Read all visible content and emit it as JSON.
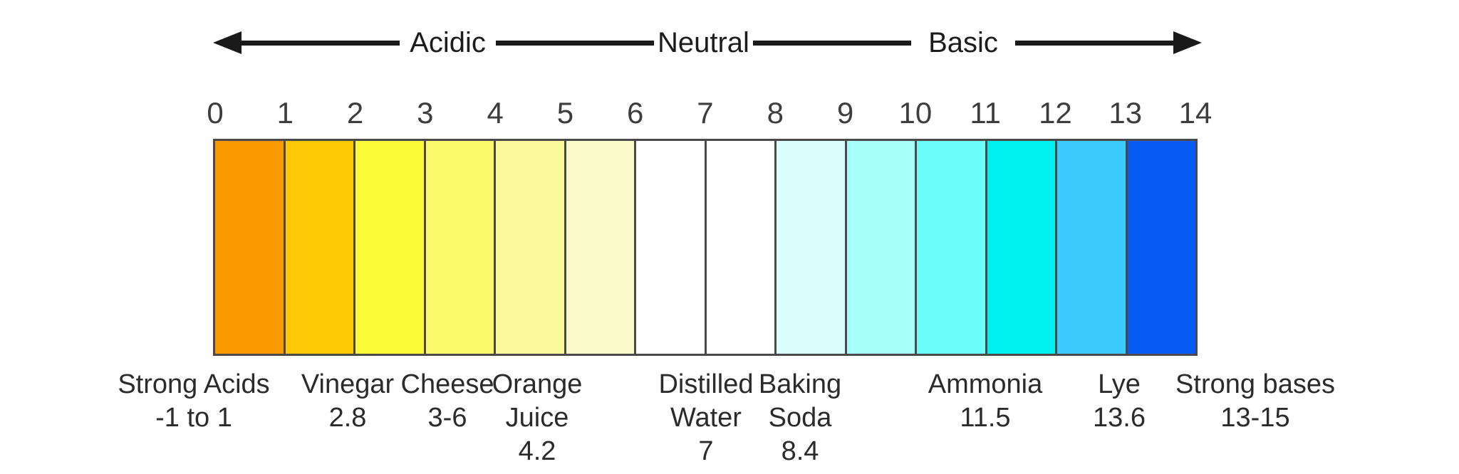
{
  "diagram": {
    "type": "ph-scale",
    "background": "#FFFFFF",
    "text_color": "#2B2B2B",
    "arrow_color": "#1A1A1A"
  },
  "arrow": {
    "acidic_label": "Acidic",
    "neutral_label": "Neutral",
    "basic_label": "Basic"
  },
  "scale": {
    "ticks": [
      "0",
      "1",
      "2",
      "3",
      "4",
      "5",
      "6",
      "7",
      "8",
      "9",
      "10",
      "11",
      "12",
      "13",
      "14"
    ],
    "border_color": "#4A4A4A",
    "cells": [
      {
        "ph_from": 0,
        "ph_to": 1,
        "color": "#FB9902"
      },
      {
        "ph_from": 1,
        "ph_to": 2,
        "color": "#FDC804"
      },
      {
        "ph_from": 2,
        "ph_to": 3,
        "color": "#FAFA38"
      },
      {
        "ph_from": 3,
        "ph_to": 4,
        "color": "#FAFA6A"
      },
      {
        "ph_from": 4,
        "ph_to": 5,
        "color": "#FAFA9B"
      },
      {
        "ph_from": 5,
        "ph_to": 6,
        "color": "#FAFACA"
      },
      {
        "ph_from": 6,
        "ph_to": 7,
        "color": "#FFFFFF"
      },
      {
        "ph_from": 7,
        "ph_to": 8,
        "color": "#FFFFFF"
      },
      {
        "ph_from": 8,
        "ph_to": 9,
        "color": "#D9FEFB"
      },
      {
        "ph_from": 9,
        "ph_to": 10,
        "color": "#A8FEFB"
      },
      {
        "ph_from": 10,
        "ph_to": 11,
        "color": "#6BFEFA"
      },
      {
        "ph_from": 11,
        "ph_to": 12,
        "color": "#00F0F0"
      },
      {
        "ph_from": 12,
        "ph_to": 13,
        "color": "#3DCAFC"
      },
      {
        "ph_from": 13,
        "ph_to": 14,
        "color": "#065BF3"
      }
    ]
  },
  "substances": [
    {
      "name": "Strong Acids",
      "ph": "-1 to 1",
      "lines": [
        "Strong Acids",
        "-1 to 1"
      ]
    },
    {
      "name": "Vinegar",
      "ph": "2.8",
      "lines": [
        "Vinegar",
        "2.8"
      ]
    },
    {
      "name": "Cheese",
      "ph": "3-6",
      "lines": [
        "Cheese",
        "3-6"
      ]
    },
    {
      "name": "Orange Juice",
      "ph": "4.2",
      "lines": [
        "Orange",
        "Juice",
        "4.2"
      ]
    },
    {
      "name": "Distilled Water",
      "ph": "7",
      "lines": [
        "Distilled",
        "Water",
        "7"
      ]
    },
    {
      "name": "Baking Soda",
      "ph": "8.4",
      "lines": [
        "Baking",
        "Soda",
        "8.4"
      ]
    },
    {
      "name": "Ammonia",
      "ph": "11.5",
      "lines": [
        "Ammonia",
        "11.5"
      ]
    },
    {
      "name": "Lye",
      "ph": "13.6",
      "lines": [
        "Lye",
        "13.6"
      ]
    },
    {
      "name": "Strong bases",
      "ph": "13-15",
      "lines": [
        "Strong bases",
        "13-15"
      ]
    }
  ]
}
